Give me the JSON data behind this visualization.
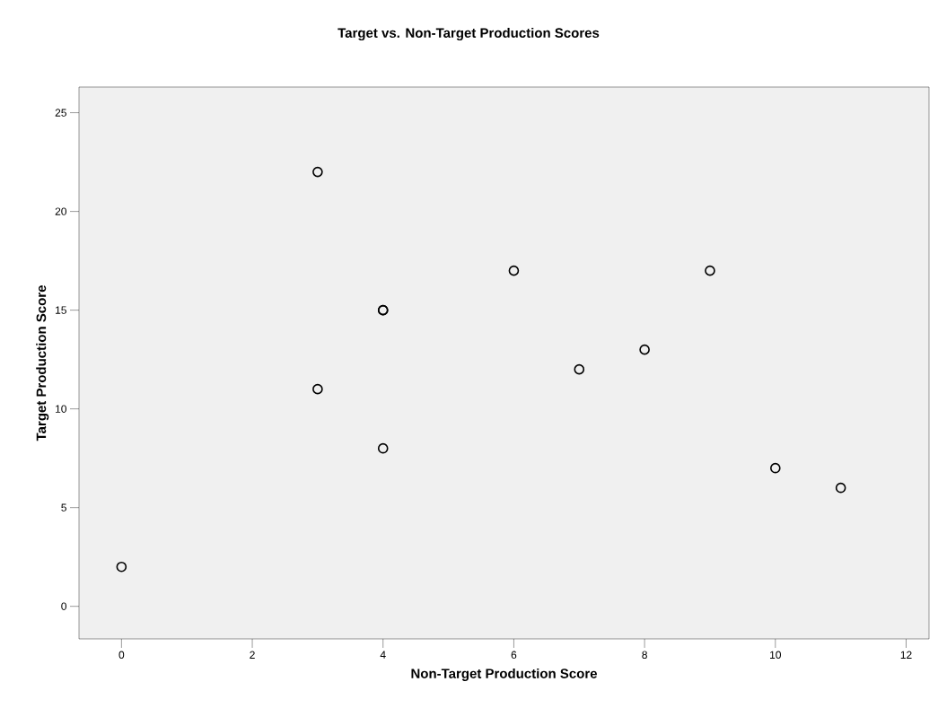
{
  "chart_data": {
    "type": "scatter",
    "title": "Target vs. Non-Target Production Scores",
    "xlabel": "Non-Target Production Score",
    "ylabel": "Target Production Score",
    "x": [
      0,
      3,
      3,
      4,
      4,
      4,
      6,
      7,
      8,
      9,
      10,
      11
    ],
    "values": [
      2,
      22,
      11,
      15,
      15,
      8,
      17,
      12,
      13,
      17,
      7,
      6
    ],
    "color": "#000000",
    "marker": "circle",
    "xlim": [
      -0.65,
      12.35
    ],
    "ylim": [
      -1.65,
      26.3
    ],
    "xticks": [
      0,
      2,
      4,
      6,
      8,
      10,
      12
    ],
    "yticks": [
      0,
      5,
      10,
      15,
      20,
      25
    ],
    "grid": false
  }
}
